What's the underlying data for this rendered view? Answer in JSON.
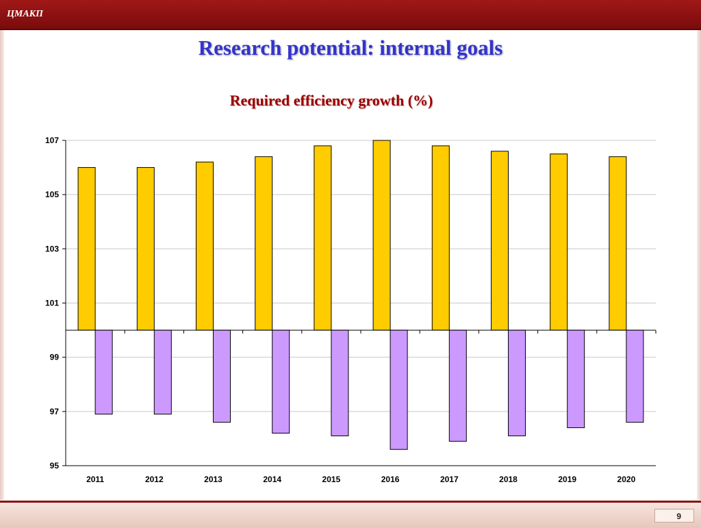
{
  "header": {
    "logo_text": "ЦМАКП"
  },
  "slide": {
    "title": "Research potential: internal goals",
    "page_number": "9"
  },
  "colors": {
    "bar_up": "#ffcc00",
    "bar_down": "#cc99ff",
    "accent": "#8a1010"
  },
  "chart_data": {
    "type": "bar",
    "title": "Required efficiency growth (%)",
    "xlabel": "",
    "ylabel": "",
    "baseline": 100,
    "ylim": [
      95,
      107
    ],
    "yticks": [
      95,
      97,
      99,
      101,
      103,
      105,
      107
    ],
    "grid": true,
    "categories": [
      "2011",
      "2012",
      "2013",
      "2014",
      "2015",
      "2016",
      "2017",
      "2018",
      "2019",
      "2020"
    ],
    "series": [
      {
        "values": [
          106.0,
          106.0,
          106.2,
          106.4,
          106.8,
          107.0,
          106.8,
          106.6,
          106.5,
          106.4
        ]
      },
      {
        "values": [
          96.9,
          96.9,
          96.6,
          96.2,
          96.1,
          95.6,
          95.9,
          96.1,
          96.4,
          96.6
        ]
      }
    ]
  }
}
